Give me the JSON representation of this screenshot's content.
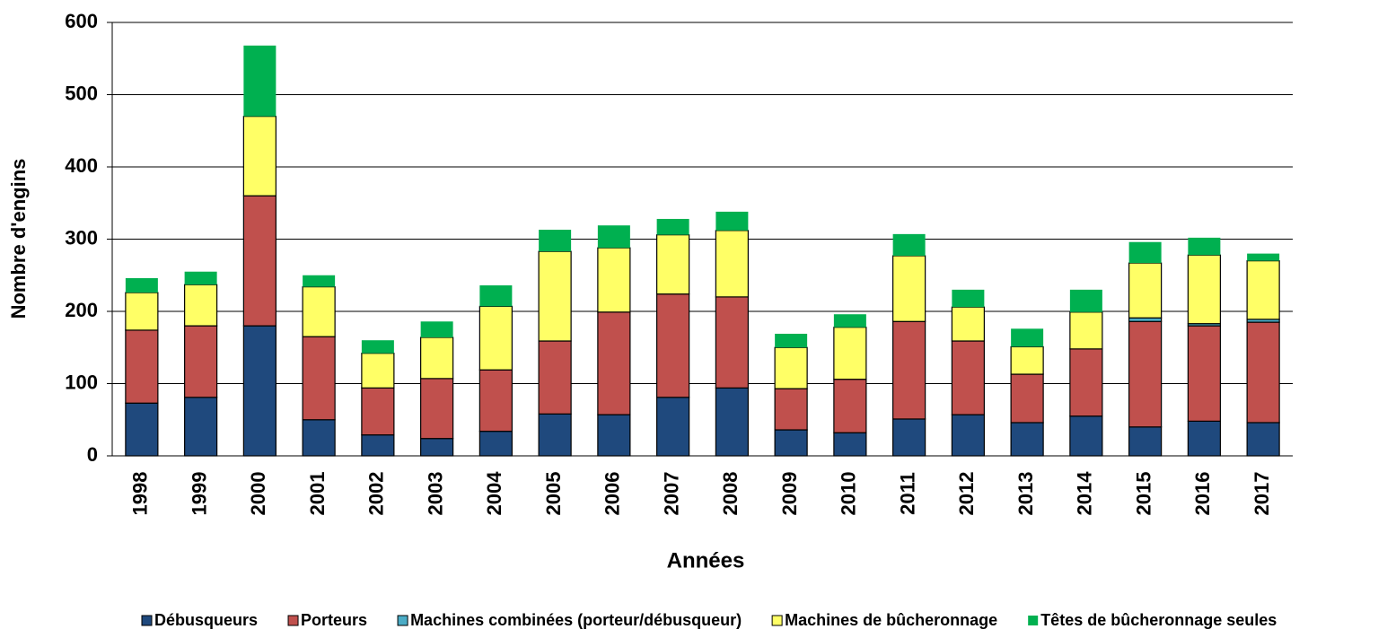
{
  "chart_data": {
    "type": "stacked_bar",
    "x_label": "Années",
    "y_label": "Nombre d'engins",
    "categories": [
      "1998",
      "1999",
      "2000",
      "2001",
      "2002",
      "2003",
      "2004",
      "2005",
      "2006",
      "2007",
      "2008",
      "2009",
      "2010",
      "2011",
      "2012",
      "2013",
      "2014",
      "2015",
      "2016",
      "2017"
    ],
    "series": [
      {
        "name": "Débusqueurs",
        "color": "#1f497d",
        "values": [
          73,
          81,
          180,
          50,
          29,
          24,
          34,
          58,
          57,
          81,
          94,
          36,
          32,
          51,
          57,
          46,
          55,
          40,
          48,
          46
        ]
      },
      {
        "name": "Porteurs",
        "color": "#c0504d",
        "values": [
          101,
          99,
          180,
          115,
          65,
          83,
          85,
          101,
          142,
          143,
          126,
          57,
          74,
          135,
          102,
          67,
          93,
          146,
          132,
          139
        ]
      },
      {
        "name": "Machines combinées (porteur/débusqueur)",
        "color": "#4bacc6",
        "values": [
          0,
          0,
          0,
          0,
          0,
          0,
          0,
          0,
          0,
          0,
          0,
          0,
          0,
          0,
          0,
          0,
          0,
          5,
          3,
          4
        ]
      },
      {
        "name": "Machines de bûcheronnage",
        "color": "#ffff66",
        "values": [
          52,
          57,
          110,
          69,
          48,
          57,
          88,
          124,
          89,
          82,
          92,
          57,
          72,
          91,
          47,
          38,
          51,
          76,
          95,
          81
        ]
      },
      {
        "name": "Têtes de bûcheronnage seules",
        "color": "#00b050",
        "values": [
          20,
          18,
          98,
          16,
          18,
          22,
          29,
          30,
          31,
          22,
          26,
          19,
          18,
          30,
          24,
          25,
          31,
          29,
          24,
          10
        ]
      }
    ],
    "ylim": [
      0,
      600
    ],
    "yticks": [
      0,
      100,
      200,
      300,
      400,
      500,
      600
    ],
    "grid": true,
    "legend": "bottom"
  }
}
